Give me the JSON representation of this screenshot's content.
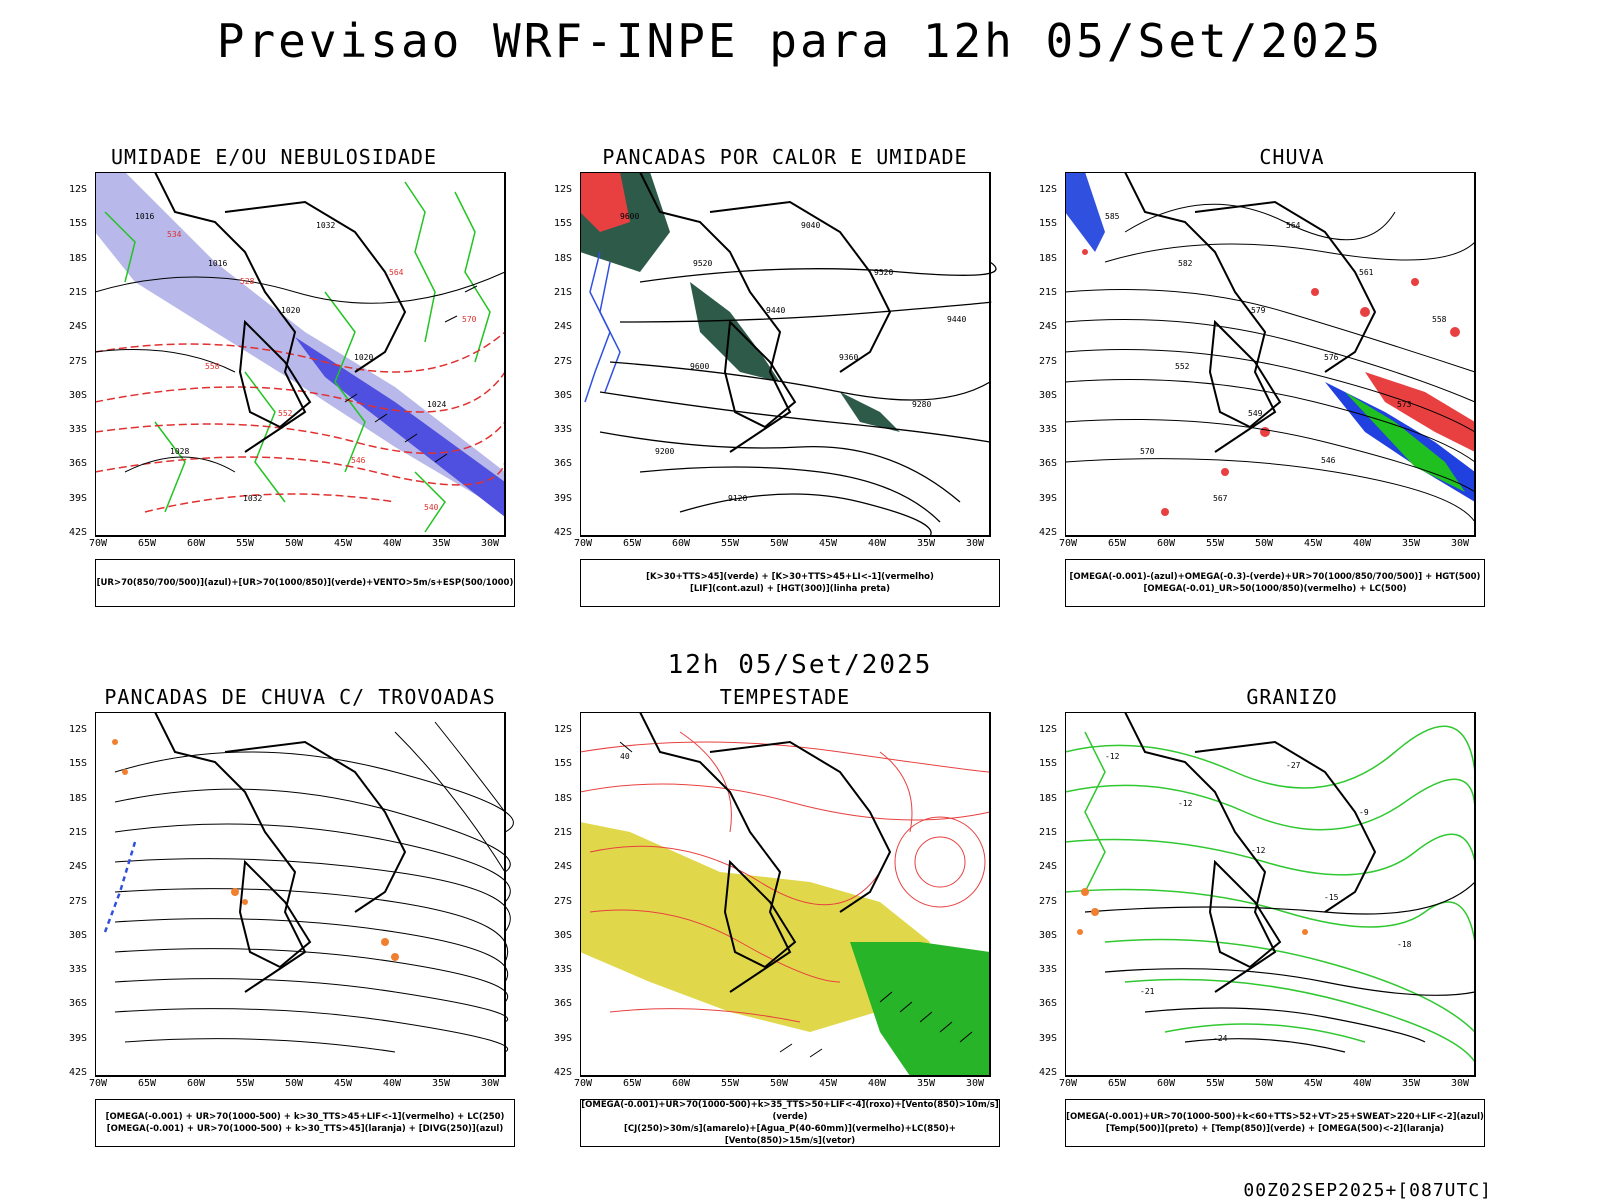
{
  "title": "Previsao WRF-INPE  para 12h 05/Set/2025",
  "subtitle": "12h 05/Set/2025",
  "footer": "00Z02SEP2025+[087UTC]",
  "axes": {
    "lat_labels": [
      "12S",
      "15S",
      "18S",
      "21S",
      "24S",
      "27S",
      "30S",
      "33S",
      "36S",
      "39S",
      "42S"
    ],
    "lon_labels": [
      "70W",
      "65W",
      "60W",
      "55W",
      "50W",
      "45W",
      "40W",
      "35W",
      "30W"
    ]
  },
  "panels": [
    {
      "title": "UMIDADE E/OU NEBULOSIDADE",
      "legend": [
        "[UR>70(850/700/500)](azul)+[UR>70(1000/850)](verde)+VENTO>5m/s+ESP(500/1000)"
      ],
      "contour_labels": [
        "1016",
        "1016",
        "1020",
        "1020",
        "1024",
        "1028",
        "1032",
        "1032",
        "564",
        "570",
        "558",
        "552",
        "546",
        "540",
        "534",
        "528"
      ],
      "icons": {
        "fill_primary": "lavender-blue",
        "fill_secondary": "green-contour"
      }
    },
    {
      "title": "PANCADAS POR CALOR E UMIDADE",
      "legend": [
        "[K>30+TTS>45](verde) + [K>30+TTS>45+LI<-1](vermelho)",
        "[LIF](cont.azul) + [HGT(300)](linha preta)"
      ],
      "contour_labels": [
        "9600",
        "9520",
        "9440",
        "9360",
        "9280",
        "9200",
        "9120",
        "9040",
        "9520",
        "9440",
        "9600"
      ]
    },
    {
      "title": "CHUVA",
      "legend": [
        "[OMEGA(-0.001)-(azul)+OMEGA(-0.3)-(verde)+UR>70(1000/850/700/500)] + HGT(500)",
        "[OMEGA(-0.01)_UR>50(1000/850)(vermelho) + LC(500)"
      ],
      "contour_labels": [
        "585",
        "582",
        "579",
        "576",
        "573",
        "570",
        "567",
        "564",
        "561",
        "558",
        "552",
        "549",
        "546"
      ]
    },
    {
      "title": "PANCADAS DE CHUVA C/ TROVOADAS",
      "legend": [
        "[OMEGA(-0.001) + UR>70(1000-500) + k>30_TTS>45+LIF<-1](vermelho) + LC(250)",
        "[OMEGA(-0.001) + UR>70(1000-500) + k>30_TTS>45](laranja) + [DIVG(250)](azul)"
      ],
      "contour_labels": []
    },
    {
      "title": "TEMPESTADE",
      "legend": [
        "[OMEGA(-0.001)+UR>70(1000-500)+k>35_TTS>50+LIF<-4](roxo)+[Vento(850)>10m/s](verde)",
        "[CJ(250)>30m/s](amarelo)+[Agua_P(40-60mm)](vermelho)+LC(850)+[Vento(850)>15m/s](vetor)"
      ],
      "contour_labels": [
        "40"
      ]
    },
    {
      "title": "GRANIZO",
      "legend": [
        "[OMEGA(-0.001)+UR>70(1000-500)+k<60+TTS>52+VT>25+SWEAT>220+LIF<-2](azul)",
        "[Temp(500)](preto) + [Temp(850)](verde) + [OMEGA(500)<-2](laranja)"
      ],
      "contour_labels": [
        "-12",
        "-12",
        "-12",
        "-15",
        "-18",
        "-21",
        "-24",
        "-27",
        "-9"
      ]
    }
  ]
}
